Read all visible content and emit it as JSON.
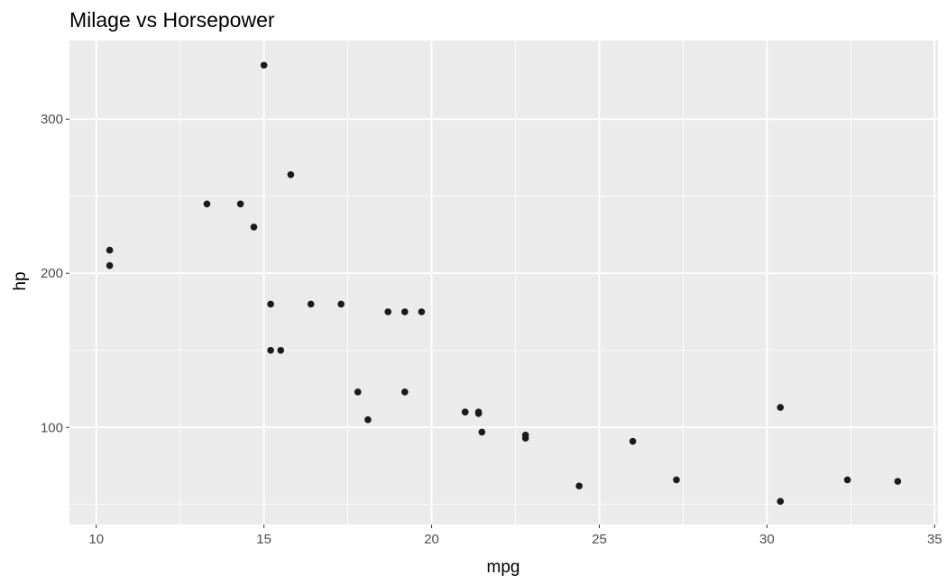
{
  "chart_data": {
    "type": "scatter",
    "title": "Milage vs Horsepower",
    "xlabel": "mpg",
    "ylabel": "hp",
    "xlim": [
      9.2,
      35.1
    ],
    "ylim": [
      37,
      351
    ],
    "xticks": [
      10,
      15,
      20,
      25,
      30,
      35
    ],
    "yticks": [
      100,
      200,
      300
    ],
    "xminor": [
      12.5,
      17.5,
      22.5,
      27.5,
      32.5
    ],
    "yminor": [
      50,
      150,
      250
    ],
    "grid": true,
    "legend": "none",
    "colors": {
      "panel": "#EBEBEB",
      "grid": "#FFFFFF",
      "point": "#1A1A1A"
    },
    "points": [
      {
        "x": 21.0,
        "y": 110
      },
      {
        "x": 21.0,
        "y": 110
      },
      {
        "x": 22.8,
        "y": 93
      },
      {
        "x": 21.4,
        "y": 110
      },
      {
        "x": 18.7,
        "y": 175
      },
      {
        "x": 18.1,
        "y": 105
      },
      {
        "x": 14.3,
        "y": 245
      },
      {
        "x": 24.4,
        "y": 62
      },
      {
        "x": 22.8,
        "y": 95
      },
      {
        "x": 19.2,
        "y": 123
      },
      {
        "x": 17.8,
        "y": 123
      },
      {
        "x": 16.4,
        "y": 180
      },
      {
        "x": 17.3,
        "y": 180
      },
      {
        "x": 15.2,
        "y": 180
      },
      {
        "x": 10.4,
        "y": 205
      },
      {
        "x": 10.4,
        "y": 215
      },
      {
        "x": 14.7,
        "y": 230
      },
      {
        "x": 32.4,
        "y": 66
      },
      {
        "x": 30.4,
        "y": 52
      },
      {
        "x": 33.9,
        "y": 65
      },
      {
        "x": 21.5,
        "y": 97
      },
      {
        "x": 15.5,
        "y": 150
      },
      {
        "x": 15.2,
        "y": 150
      },
      {
        "x": 13.3,
        "y": 245
      },
      {
        "x": 19.2,
        "y": 175
      },
      {
        "x": 27.3,
        "y": 66
      },
      {
        "x": 26.0,
        "y": 91
      },
      {
        "x": 30.4,
        "y": 113
      },
      {
        "x": 15.8,
        "y": 264
      },
      {
        "x": 19.7,
        "y": 175
      },
      {
        "x": 15.0,
        "y": 335
      },
      {
        "x": 21.4,
        "y": 109
      }
    ]
  }
}
